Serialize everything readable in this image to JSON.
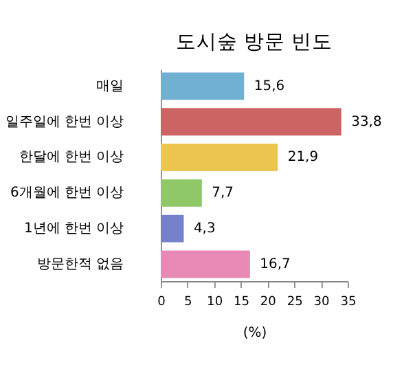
{
  "chart_data": {
    "type": "bar",
    "orientation": "horizontal",
    "title": "도시숲 방문 빈도",
    "xlabel": "(%)",
    "categories": [
      "매일",
      "일주일에 한번 이상",
      "한달에 한번 이상",
      "6개월에 한번 이상",
      "1년에 한번 이상",
      "방문한적 없음"
    ],
    "values": [
      15.6,
      33.8,
      21.9,
      7.7,
      4.3,
      16.7
    ],
    "value_labels": [
      "15,6",
      "33,8",
      "21,9",
      "7,7",
      "4,3",
      "16,7"
    ],
    "colors": [
      "#70b0d0",
      "#cc6464",
      "#ecc450",
      "#90c868",
      "#7480c8",
      "#e888b4"
    ],
    "xlim": [
      0,
      35
    ],
    "xticks": [
      0,
      5,
      10,
      15,
      20,
      25,
      30,
      35
    ],
    "grid": false
  }
}
